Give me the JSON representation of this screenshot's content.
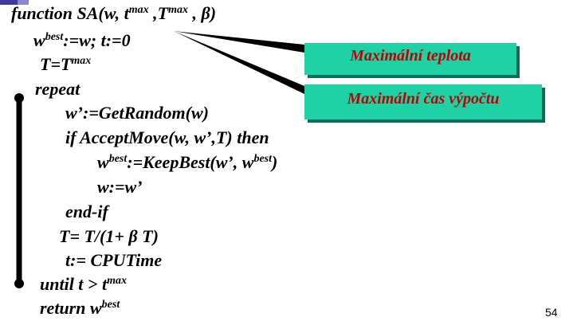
{
  "colors": {
    "code_text": "#000000",
    "callout_fill": "#1fd2a6",
    "callout_text": "#c00000",
    "callout_border": "#000000",
    "corner_accent": "#3c3c9c"
  },
  "code": {
    "line1": {
      "kw": "function SA(w, t",
      "sup1": "max",
      "mid1": " ,T",
      "sup2": "max",
      "end": " , β)"
    },
    "line2": {
      "kw": "w",
      "sup": "best",
      "end": ":=w;  t:=0"
    },
    "line3": {
      "kw": "T=T",
      "sup": "max"
    },
    "line4": {
      "text": "repeat"
    },
    "line5": {
      "text": "w’:=GetRandom(w)"
    },
    "line6": {
      "text": "if  AcceptMove(w, w’,T) then"
    },
    "line7": {
      "kw": "w",
      "sup1": "best",
      "mid": ":=KeepBest(w’, w",
      "sup2": "best",
      "end": ")"
    },
    "line8": {
      "text": "w:=w’"
    },
    "line9": {
      "text": "end-if"
    },
    "line10": {
      "text": "T= T/(1+ β T)"
    },
    "line11": {
      "text": "t:= CPUTime"
    },
    "line12": {
      "kw": "until   t > t",
      "sup": "max"
    },
    "line13": {
      "kw": "return w",
      "sup": "best"
    }
  },
  "callouts": {
    "max_temp": "Maximální teplota",
    "max_time": "Maximální čas výpočtu"
  },
  "slide_number": "54"
}
